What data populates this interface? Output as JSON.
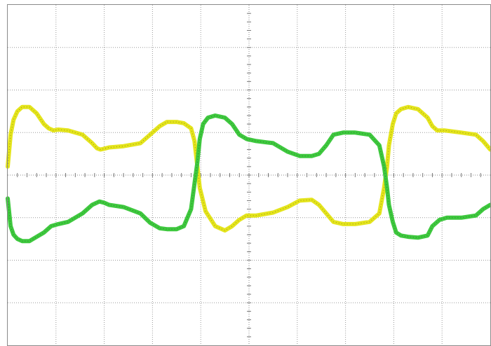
{
  "chart_data": {
    "type": "line",
    "title": "",
    "xlabel": "",
    "ylabel": "",
    "xlim": [
      0,
      10
    ],
    "ylim": [
      -4,
      4
    ],
    "grid": true,
    "legend": "none",
    "x_divisions": 10,
    "y_divisions": 8,
    "series": [
      {
        "color": "#e4e41c",
        "x": [
          0.0,
          0.06,
          0.12,
          0.2,
          0.3,
          0.45,
          0.6,
          0.75,
          0.85,
          0.95,
          1.05,
          1.25,
          1.55,
          1.75,
          1.85,
          1.92,
          2.0,
          2.1,
          2.4,
          2.75,
          2.95,
          3.15,
          3.3,
          3.5,
          3.65,
          3.8,
          3.87,
          3.93,
          3.98,
          4.1,
          4.3,
          4.5,
          4.65,
          4.8,
          4.95,
          5.15,
          5.5,
          5.8,
          6.05,
          6.3,
          6.45,
          6.6,
          6.75,
          6.95,
          7.2,
          7.5,
          7.7,
          7.8,
          7.86,
          7.9,
          7.98,
          8.05,
          8.15,
          8.3,
          8.5,
          8.7,
          8.8,
          8.9,
          9.05,
          9.4,
          9.7,
          9.85,
          10.0
        ],
        "y": [
          0.2,
          0.95,
          1.3,
          1.5,
          1.6,
          1.6,
          1.45,
          1.2,
          1.1,
          1.05,
          1.07,
          1.05,
          0.95,
          0.75,
          0.63,
          0.6,
          0.62,
          0.65,
          0.68,
          0.75,
          0.95,
          1.15,
          1.25,
          1.25,
          1.22,
          1.1,
          0.8,
          0.2,
          -0.3,
          -0.85,
          -1.2,
          -1.3,
          -1.2,
          -1.05,
          -0.95,
          -0.95,
          -0.88,
          -0.75,
          -0.6,
          -0.58,
          -0.7,
          -0.9,
          -1.1,
          -1.15,
          -1.15,
          -1.1,
          -0.9,
          -0.3,
          0.2,
          0.7,
          1.2,
          1.45,
          1.55,
          1.6,
          1.55,
          1.35,
          1.15,
          1.05,
          1.05,
          1.0,
          0.95,
          0.8,
          0.6
        ]
      },
      {
        "color": "#3ec83e",
        "x": [
          0.0,
          0.06,
          0.12,
          0.2,
          0.3,
          0.45,
          0.6,
          0.75,
          0.9,
          1.05,
          1.25,
          1.55,
          1.75,
          1.9,
          2.0,
          2.1,
          2.4,
          2.75,
          2.95,
          3.15,
          3.3,
          3.5,
          3.65,
          3.8,
          3.87,
          3.93,
          3.98,
          4.05,
          4.15,
          4.3,
          4.5,
          4.65,
          4.8,
          4.95,
          5.15,
          5.5,
          5.8,
          6.05,
          6.3,
          6.45,
          6.6,
          6.75,
          6.95,
          7.2,
          7.5,
          7.7,
          7.8,
          7.86,
          7.9,
          7.98,
          8.05,
          8.15,
          8.3,
          8.5,
          8.7,
          8.8,
          8.95,
          9.1,
          9.4,
          9.7,
          9.85,
          10.0
        ],
        "y": [
          -0.55,
          -1.2,
          -1.4,
          -1.5,
          -1.55,
          -1.55,
          -1.45,
          -1.35,
          -1.2,
          -1.15,
          -1.1,
          -0.9,
          -0.7,
          -0.62,
          -0.65,
          -0.7,
          -0.75,
          -0.9,
          -1.12,
          -1.25,
          -1.27,
          -1.27,
          -1.2,
          -0.8,
          -0.2,
          0.3,
          0.85,
          1.2,
          1.35,
          1.4,
          1.35,
          1.2,
          0.95,
          0.85,
          0.8,
          0.75,
          0.55,
          0.45,
          0.45,
          0.5,
          0.7,
          0.95,
          1.0,
          1.0,
          0.95,
          0.7,
          0.2,
          -0.3,
          -0.7,
          -1.1,
          -1.35,
          -1.42,
          -1.45,
          -1.47,
          -1.42,
          -1.2,
          -1.05,
          -1.0,
          -1.0,
          -0.95,
          -0.8,
          -0.7
        ]
      }
    ]
  }
}
